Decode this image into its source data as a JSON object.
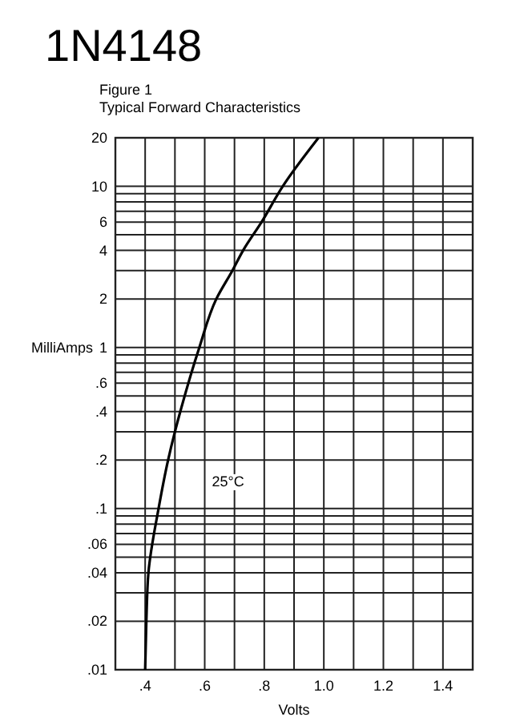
{
  "chart_data": {
    "type": "line",
    "title": "1N4148",
    "subtitle": "Figure 1\nTypical Forward Characteristics",
    "xlabel": "Volts",
    "ylabel": "MilliAmps",
    "log": "y",
    "grid": true,
    "marker": "none",
    "line_style": "solid",
    "xlim": [
      0.3,
      1.5
    ],
    "xticks": [
      {
        "value": 0.3,
        "label": null
      },
      {
        "value": 0.4,
        "label": ".4"
      },
      {
        "value": 0.5,
        "label": null
      },
      {
        "value": 0.6,
        "label": ".6"
      },
      {
        "value": 0.7,
        "label": null
      },
      {
        "value": 0.8,
        "label": ".8"
      },
      {
        "value": 0.9,
        "label": null
      },
      {
        "value": 1.0,
        "label": "1.0"
      },
      {
        "value": 1.1,
        "label": null
      },
      {
        "value": 1.2,
        "label": "1.2"
      },
      {
        "value": 1.3,
        "label": null
      },
      {
        "value": 1.4,
        "label": "1.4"
      },
      {
        "value": 1.5,
        "label": null
      }
    ],
    "ylim": [
      0.01,
      20
    ],
    "yticks": [
      {
        "value": 0.01,
        "label": ".01"
      },
      {
        "value": 0.02,
        "label": ".02"
      },
      {
        "value": 0.03,
        "label": null
      },
      {
        "value": 0.04,
        "label": ".04"
      },
      {
        "value": 0.05,
        "label": null
      },
      {
        "value": 0.06,
        "label": ".06"
      },
      {
        "value": 0.07,
        "label": null
      },
      {
        "value": 0.08,
        "label": null
      },
      {
        "value": 0.09,
        "label": null
      },
      {
        "value": 0.1,
        "label": ".1"
      },
      {
        "value": 0.2,
        "label": ".2"
      },
      {
        "value": 0.3,
        "label": null
      },
      {
        "value": 0.4,
        "label": ".4"
      },
      {
        "value": 0.5,
        "label": null
      },
      {
        "value": 0.6,
        "label": ".6"
      },
      {
        "value": 0.7,
        "label": null
      },
      {
        "value": 0.8,
        "label": null
      },
      {
        "value": 0.9,
        "label": null
      },
      {
        "value": 1,
        "label": "1"
      },
      {
        "value": 2,
        "label": "2"
      },
      {
        "value": 3,
        "label": null
      },
      {
        "value": 4,
        "label": "4"
      },
      {
        "value": 5,
        "label": null
      },
      {
        "value": 6,
        "label": "6"
      },
      {
        "value": 7,
        "label": null
      },
      {
        "value": 8,
        "label": null
      },
      {
        "value": 9,
        "label": null
      },
      {
        "value": 10,
        "label": "10"
      },
      {
        "value": 20,
        "label": "20"
      }
    ],
    "x": [
      0.4,
      0.404,
      0.411,
      0.445,
      0.477,
      0.5,
      0.518,
      0.582,
      0.639,
      0.693,
      0.729,
      0.791,
      0.862,
      0.982
    ],
    "series": [
      {
        "color": "#000000",
        "values": [
          0.01,
          0.02,
          0.04,
          0.1,
          0.2,
          0.3,
          0.4,
          1,
          2,
          3,
          4,
          6,
          10,
          20
        ]
      }
    ],
    "annotations": [
      "25°C"
    ]
  }
}
